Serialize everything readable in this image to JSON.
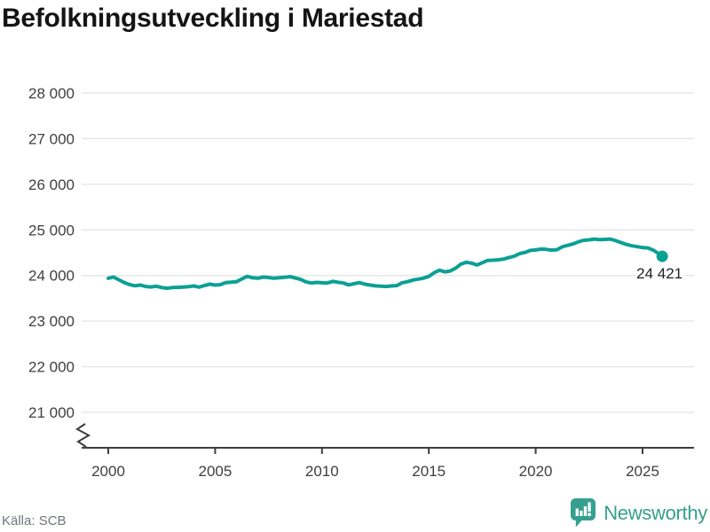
{
  "title": "Befolkningsutveckling i Mariestad",
  "source": "Källa: SCB",
  "branding": {
    "name": "Newsworthy",
    "icon": "bar-chart-speech-bubble-icon"
  },
  "colors": {
    "line": "#0ba094",
    "brand_teal": "#35a08e",
    "grid": "#e3e3e3",
    "axis": "#3d3d3d",
    "title_text": "#141414",
    "value_label": "#1f1f1f",
    "source_text": "#70747c"
  },
  "chart_data": {
    "type": "line",
    "title": "Befolkningsutveckling i Mariestad",
    "xlabel": "",
    "ylabel": "",
    "grid": "horizontal",
    "axis_break": true,
    "ylim": [
      21000,
      28000
    ],
    "xlim": [
      2000,
      2026
    ],
    "legend": "none",
    "yticks": [
      {
        "value": 28000,
        "label": "28 000"
      },
      {
        "value": 27000,
        "label": "27 000"
      },
      {
        "value": 26000,
        "label": "26 000"
      },
      {
        "value": 25000,
        "label": "25 000"
      },
      {
        "value": 24000,
        "label": "24 000"
      },
      {
        "value": 23000,
        "label": "23 000"
      },
      {
        "value": 22000,
        "label": "22 000"
      },
      {
        "value": 21000,
        "label": "21 000"
      }
    ],
    "xticks": [
      {
        "value": 2000,
        "label": "2000"
      },
      {
        "value": 2005,
        "label": "2005"
      },
      {
        "value": 2010,
        "label": "2010"
      },
      {
        "value": 2015,
        "label": "2015"
      },
      {
        "value": 2020,
        "label": "2020"
      },
      {
        "value": 2025,
        "label": "2025"
      }
    ],
    "series_name": "Befolkning",
    "x": [
      2000.0,
      2000.25,
      2000.5,
      2000.75,
      2001.0,
      2001.25,
      2001.5,
      2001.75,
      2002.0,
      2002.25,
      2002.5,
      2002.75,
      2003.0,
      2003.25,
      2003.5,
      2003.75,
      2004.0,
      2004.25,
      2004.5,
      2004.75,
      2005.0,
      2005.25,
      2005.5,
      2005.75,
      2006.0,
      2006.25,
      2006.5,
      2006.75,
      2007.0,
      2007.25,
      2007.5,
      2007.75,
      2008.0,
      2008.25,
      2008.5,
      2008.75,
      2009.0,
      2009.25,
      2009.5,
      2009.75,
      2010.0,
      2010.25,
      2010.5,
      2010.75,
      2011.0,
      2011.25,
      2011.5,
      2011.75,
      2012.0,
      2012.25,
      2012.5,
      2012.75,
      2013.0,
      2013.25,
      2013.5,
      2013.75,
      2014.0,
      2014.25,
      2014.5,
      2014.75,
      2015.0,
      2015.25,
      2015.5,
      2015.75,
      2016.0,
      2016.25,
      2016.5,
      2016.75,
      2017.0,
      2017.25,
      2017.5,
      2017.75,
      2018.0,
      2018.25,
      2018.5,
      2018.75,
      2019.0,
      2019.25,
      2019.5,
      2019.75,
      2020.0,
      2020.25,
      2020.5,
      2020.75,
      2021.0,
      2021.25,
      2021.5,
      2021.75,
      2022.0,
      2022.25,
      2022.5,
      2022.75,
      2023.0,
      2023.25,
      2023.5,
      2023.75,
      2024.0,
      2024.25,
      2024.5,
      2024.75,
      2025.0,
      2025.25,
      2025.5,
      2025.75,
      2025.92
    ],
    "values": [
      23940,
      23965,
      23905,
      23845,
      23800,
      23775,
      23790,
      23760,
      23750,
      23765,
      23735,
      23720,
      23735,
      23740,
      23745,
      23755,
      23770,
      23745,
      23780,
      23810,
      23790,
      23800,
      23845,
      23855,
      23865,
      23925,
      23980,
      23950,
      23940,
      23965,
      23955,
      23940,
      23950,
      23960,
      23975,
      23945,
      23915,
      23860,
      23835,
      23848,
      23840,
      23835,
      23870,
      23850,
      23835,
      23795,
      23820,
      23845,
      23810,
      23790,
      23772,
      23765,
      23760,
      23770,
      23778,
      23840,
      23865,
      23900,
      23920,
      23942,
      23980,
      24060,
      24115,
      24080,
      24100,
      24160,
      24250,
      24290,
      24270,
      24230,
      24280,
      24330,
      24335,
      24345,
      24360,
      24395,
      24425,
      24480,
      24505,
      24550,
      24560,
      24580,
      24572,
      24556,
      24566,
      24630,
      24662,
      24692,
      24740,
      24772,
      24782,
      24800,
      24786,
      24792,
      24800,
      24762,
      24722,
      24680,
      24652,
      24632,
      24612,
      24605,
      24556,
      24480,
      24421
    ],
    "last_point_label": "24 421",
    "last_point_value": 24421
  }
}
